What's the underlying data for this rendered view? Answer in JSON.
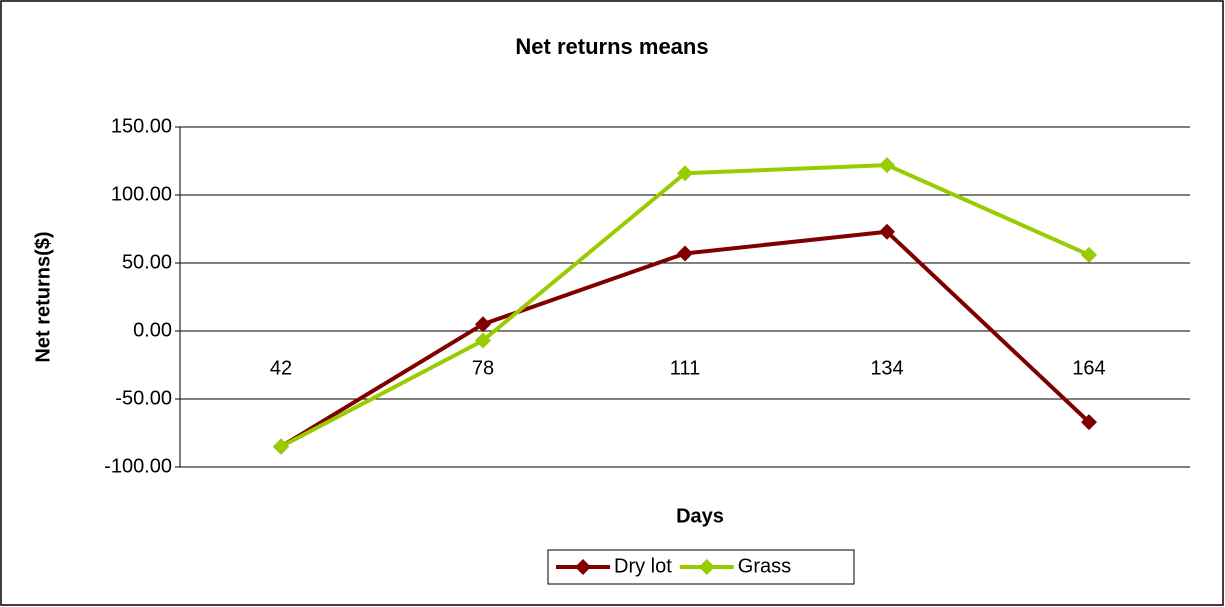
{
  "chart_data": {
    "type": "line",
    "title": "Net returns means",
    "x_label": "Days",
    "y_label": "Net returns($)",
    "categories": [
      "42",
      "78",
      "111",
      "134",
      "164"
    ],
    "series": [
      {
        "name": "Dry lot",
        "color": "#800000",
        "values": [
          -85,
          5,
          57,
          73,
          -67
        ]
      },
      {
        "name": "Grass",
        "color": "#99cc00",
        "values": [
          -85,
          -7,
          116,
          122,
          56
        ]
      }
    ],
    "ylim": [
      -100,
      150
    ],
    "yticks": [
      {
        "value": -100,
        "label": "-100.00"
      },
      {
        "value": -50,
        "label": "-50.00"
      },
      {
        "value": 0,
        "label": "0.00"
      },
      {
        "value": 50,
        "label": "50.00"
      },
      {
        "value": 100,
        "label": "100.00"
      },
      {
        "value": 150,
        "label": "150.00"
      }
    ],
    "grid": true,
    "legend": "bottom"
  }
}
